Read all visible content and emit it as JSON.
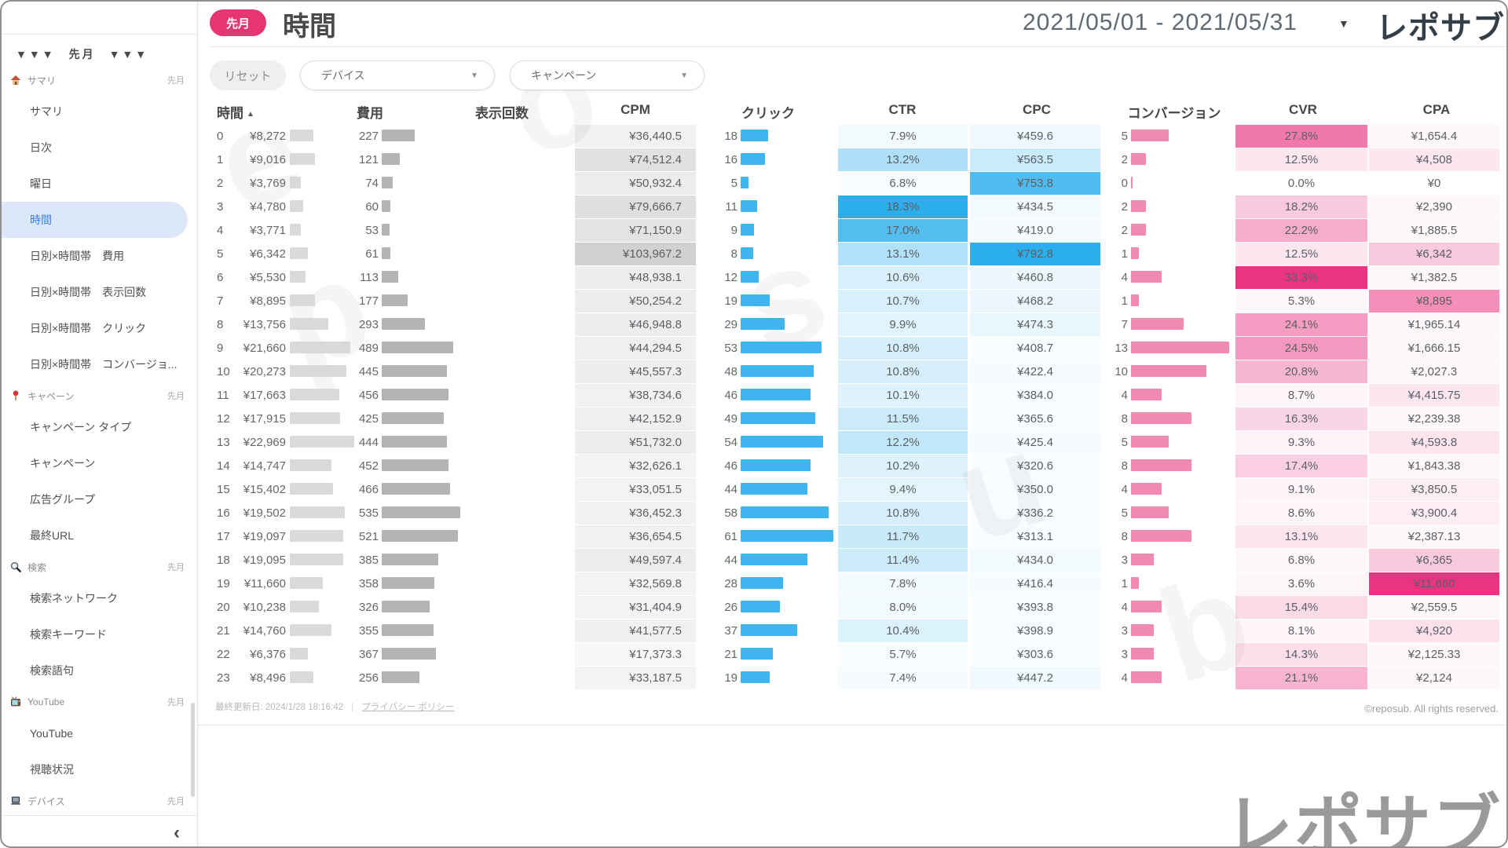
{
  "sidebar": {
    "top_label": "▼▼▼　先月　▼▼▼",
    "sections": [
      {
        "icon": "home-icon",
        "label": "サマリ",
        "period": "先月",
        "items": [
          {
            "label": "サマリ"
          },
          {
            "label": "日次"
          },
          {
            "label": "曜日"
          },
          {
            "label": "時間",
            "active": true
          },
          {
            "label": "日別×時間帯　費用"
          },
          {
            "label": "日別×時間帯　表示回数"
          },
          {
            "label": "日別×時間帯　クリック"
          },
          {
            "label": "日別×時間帯　コンバージョ..."
          }
        ]
      },
      {
        "icon": "pin-icon",
        "label": "キャペーン",
        "period": "先月",
        "items": [
          {
            "label": "キャンペーン タイプ"
          },
          {
            "label": "キャンペーン"
          },
          {
            "label": "広告グループ"
          },
          {
            "label": "最終URL"
          }
        ]
      },
      {
        "icon": "search-icon",
        "label": "検索",
        "period": "先月",
        "items": [
          {
            "label": "検索ネットワーク"
          },
          {
            "label": "検索キーワード"
          },
          {
            "label": "検索語句"
          }
        ]
      },
      {
        "icon": "tv-icon",
        "label": "YouTube",
        "period": "先月",
        "items": [
          {
            "label": "YouTube"
          },
          {
            "label": "視聴状況"
          }
        ]
      },
      {
        "icon": "laptop-icon",
        "label": "デバイス",
        "period": "先月",
        "items": []
      }
    ],
    "collapse": "‹"
  },
  "header": {
    "badge": "先月",
    "title": "時間",
    "date_range": "2021/05/01 - 2021/05/31",
    "date_caret": "▼",
    "brand": "レポサブ"
  },
  "filters": {
    "reset": "リセット",
    "device": "デバイス",
    "campaign": "キャンペーン",
    "caret": "▼"
  },
  "footer": {
    "updated": "最終更新日: 2024/1/28 18:16:42",
    "separator": "|",
    "privacy_link": "プライバシー ポリシー",
    "copyright": "©reposub. All rights reserved.",
    "watermark_brand": "レポサブ"
  },
  "colors": {
    "accent_pink": "#e73572",
    "heat_pink": [
      233,
      53,
      129
    ],
    "heat_blue": [
      44,
      174,
      236
    ],
    "bar_blue": "#3eb5ef",
    "bar_pink": "#f08ab3",
    "bar_gray_light": "#d9d9d9",
    "bar_gray": "#b3b3b3",
    "active_blue": "#3e7edc"
  },
  "chart_data": {
    "type": "table",
    "title": "時間",
    "period": "2021/05/01 - 2021/05/31",
    "columns": [
      "時間",
      "費用",
      "表示回数",
      "CPM",
      "クリック",
      "CTR",
      "CPC",
      "コンバージョン",
      "CVR",
      "CPA"
    ],
    "sort": {
      "column": "時間",
      "direction": "asc",
      "icon": "▲"
    },
    "scales": {
      "cost_max": 22969,
      "imp_max": 535,
      "click_max": 61,
      "conv_max": 13,
      "cpm_max": 103967.2,
      "ctr_range": [
        4,
        18.3
      ],
      "cpc_range": [
        300,
        792.8
      ],
      "cvr_max": 33.3,
      "cpa_max": 11660
    },
    "rows": [
      {
        "h": "0",
        "cost": 8272,
        "cost_f": "¥8,272",
        "imp": 227,
        "cpm": 36440.5,
        "cpm_f": "¥36,440.5",
        "clk": 18,
        "ctr": 7.9,
        "ctr_f": "7.9%",
        "cpc": 459.6,
        "cpc_f": "¥459.6",
        "cv": 5,
        "cvr": 27.8,
        "cvr_f": "27.8%",
        "cpa": 1654.4,
        "cpa_f": "¥1,654.4"
      },
      {
        "h": "1",
        "cost": 9016,
        "cost_f": "¥9,016",
        "imp": 121,
        "cpm": 74512.4,
        "cpm_f": "¥74,512.4",
        "clk": 16,
        "ctr": 13.2,
        "ctr_f": "13.2%",
        "cpc": 563.5,
        "cpc_f": "¥563.5",
        "cv": 2,
        "cvr": 12.5,
        "cvr_f": "12.5%",
        "cpa": 4508,
        "cpa_f": "¥4,508"
      },
      {
        "h": "2",
        "cost": 3769,
        "cost_f": "¥3,769",
        "imp": 74,
        "cpm": 50932.4,
        "cpm_f": "¥50,932.4",
        "clk": 5,
        "ctr": 6.8,
        "ctr_f": "6.8%",
        "cpc": 753.8,
        "cpc_f": "¥753.8",
        "cv": 0,
        "cvr": 0,
        "cvr_f": "0.0%",
        "cpa": 0,
        "cpa_f": "¥0"
      },
      {
        "h": "3",
        "cost": 4780,
        "cost_f": "¥4,780",
        "imp": 60,
        "cpm": 79666.7,
        "cpm_f": "¥79,666.7",
        "clk": 11,
        "ctr": 18.3,
        "ctr_f": "18.3%",
        "cpc": 434.5,
        "cpc_f": "¥434.5",
        "cv": 2,
        "cvr": 18.2,
        "cvr_f": "18.2%",
        "cpa": 2390,
        "cpa_f": "¥2,390"
      },
      {
        "h": "4",
        "cost": 3771,
        "cost_f": "¥3,771",
        "imp": 53,
        "cpm": 71150.9,
        "cpm_f": "¥71,150.9",
        "clk": 9,
        "ctr": 17.0,
        "ctr_f": "17.0%",
        "cpc": 419.0,
        "cpc_f": "¥419.0",
        "cv": 2,
        "cvr": 22.2,
        "cvr_f": "22.2%",
        "cpa": 1885.5,
        "cpa_f": "¥1,885.5"
      },
      {
        "h": "5",
        "cost": 6342,
        "cost_f": "¥6,342",
        "imp": 61,
        "cpm": 103967.2,
        "cpm_f": "¥103,967.2",
        "clk": 8,
        "ctr": 13.1,
        "ctr_f": "13.1%",
        "cpc": 792.8,
        "cpc_f": "¥792.8",
        "cv": 1,
        "cvr": 12.5,
        "cvr_f": "12.5%",
        "cpa": 6342,
        "cpa_f": "¥6,342"
      },
      {
        "h": "6",
        "cost": 5530,
        "cost_f": "¥5,530",
        "imp": 113,
        "cpm": 48938.1,
        "cpm_f": "¥48,938.1",
        "clk": 12,
        "ctr": 10.6,
        "ctr_f": "10.6%",
        "cpc": 460.8,
        "cpc_f": "¥460.8",
        "cv": 4,
        "cvr": 33.3,
        "cvr_f": "33.3%",
        "cpa": 1382.5,
        "cpa_f": "¥1,382.5"
      },
      {
        "h": "7",
        "cost": 8895,
        "cost_f": "¥8,895",
        "imp": 177,
        "cpm": 50254.2,
        "cpm_f": "¥50,254.2",
        "clk": 19,
        "ctr": 10.7,
        "ctr_f": "10.7%",
        "cpc": 468.2,
        "cpc_f": "¥468.2",
        "cv": 1,
        "cvr": 5.3,
        "cvr_f": "5.3%",
        "cpa": 8895,
        "cpa_f": "¥8,895"
      },
      {
        "h": "8",
        "cost": 13756,
        "cost_f": "¥13,756",
        "imp": 293,
        "cpm": 46948.8,
        "cpm_f": "¥46,948.8",
        "clk": 29,
        "ctr": 9.9,
        "ctr_f": "9.9%",
        "cpc": 474.3,
        "cpc_f": "¥474.3",
        "cv": 7,
        "cvr": 24.1,
        "cvr_f": "24.1%",
        "cpa": 1965.14,
        "cpa_f": "¥1,965.14"
      },
      {
        "h": "9",
        "cost": 21660,
        "cost_f": "¥21,660",
        "imp": 489,
        "cpm": 44294.5,
        "cpm_f": "¥44,294.5",
        "clk": 53,
        "ctr": 10.8,
        "ctr_f": "10.8%",
        "cpc": 408.7,
        "cpc_f": "¥408.7",
        "cv": 13,
        "cvr": 24.5,
        "cvr_f": "24.5%",
        "cpa": 1666.15,
        "cpa_f": "¥1,666.15"
      },
      {
        "h": "10",
        "cost": 20273,
        "cost_f": "¥20,273",
        "imp": 445,
        "cpm": 45557.3,
        "cpm_f": "¥45,557.3",
        "clk": 48,
        "ctr": 10.8,
        "ctr_f": "10.8%",
        "cpc": 422.4,
        "cpc_f": "¥422.4",
        "cv": 10,
        "cvr": 20.8,
        "cvr_f": "20.8%",
        "cpa": 2027.3,
        "cpa_f": "¥2,027.3"
      },
      {
        "h": "11",
        "cost": 17663,
        "cost_f": "¥17,663",
        "imp": 456,
        "cpm": 38734.6,
        "cpm_f": "¥38,734.6",
        "clk": 46,
        "ctr": 10.1,
        "ctr_f": "10.1%",
        "cpc": 384.0,
        "cpc_f": "¥384.0",
        "cv": 4,
        "cvr": 8.7,
        "cvr_f": "8.7%",
        "cpa": 4415.75,
        "cpa_f": "¥4,415.75"
      },
      {
        "h": "12",
        "cost": 17915,
        "cost_f": "¥17,915",
        "imp": 425,
        "cpm": 42152.9,
        "cpm_f": "¥42,152.9",
        "clk": 49,
        "ctr": 11.5,
        "ctr_f": "11.5%",
        "cpc": 365.6,
        "cpc_f": "¥365.6",
        "cv": 8,
        "cvr": 16.3,
        "cvr_f": "16.3%",
        "cpa": 2239.38,
        "cpa_f": "¥2,239.38"
      },
      {
        "h": "13",
        "cost": 22969,
        "cost_f": "¥22,969",
        "imp": 444,
        "cpm": 51732.0,
        "cpm_f": "¥51,732.0",
        "clk": 54,
        "ctr": 12.2,
        "ctr_f": "12.2%",
        "cpc": 425.4,
        "cpc_f": "¥425.4",
        "cv": 5,
        "cvr": 9.3,
        "cvr_f": "9.3%",
        "cpa": 4593.8,
        "cpa_f": "¥4,593.8"
      },
      {
        "h": "14",
        "cost": 14747,
        "cost_f": "¥14,747",
        "imp": 452,
        "cpm": 32626.1,
        "cpm_f": "¥32,626.1",
        "clk": 46,
        "ctr": 10.2,
        "ctr_f": "10.2%",
        "cpc": 320.6,
        "cpc_f": "¥320.6",
        "cv": 8,
        "cvr": 17.4,
        "cvr_f": "17.4%",
        "cpa": 1843.38,
        "cpa_f": "¥1,843.38"
      },
      {
        "h": "15",
        "cost": 15402,
        "cost_f": "¥15,402",
        "imp": 466,
        "cpm": 33051.5,
        "cpm_f": "¥33,051.5",
        "clk": 44,
        "ctr": 9.4,
        "ctr_f": "9.4%",
        "cpc": 350.0,
        "cpc_f": "¥350.0",
        "cv": 4,
        "cvr": 9.1,
        "cvr_f": "9.1%",
        "cpa": 3850.5,
        "cpa_f": "¥3,850.5"
      },
      {
        "h": "16",
        "cost": 19502,
        "cost_f": "¥19,502",
        "imp": 535,
        "cpm": 36452.3,
        "cpm_f": "¥36,452.3",
        "clk": 58,
        "ctr": 10.8,
        "ctr_f": "10.8%",
        "cpc": 336.2,
        "cpc_f": "¥336.2",
        "cv": 5,
        "cvr": 8.6,
        "cvr_f": "8.6%",
        "cpa": 3900.4,
        "cpa_f": "¥3,900.4"
      },
      {
        "h": "17",
        "cost": 19097,
        "cost_f": "¥19,097",
        "imp": 521,
        "cpm": 36654.5,
        "cpm_f": "¥36,654.5",
        "clk": 61,
        "ctr": 11.7,
        "ctr_f": "11.7%",
        "cpc": 313.1,
        "cpc_f": "¥313.1",
        "cv": 8,
        "cvr": 13.1,
        "cvr_f": "13.1%",
        "cpa": 2387.13,
        "cpa_f": "¥2,387.13"
      },
      {
        "h": "18",
        "cost": 19095,
        "cost_f": "¥19,095",
        "imp": 385,
        "cpm": 49597.4,
        "cpm_f": "¥49,597.4",
        "clk": 44,
        "ctr": 11.4,
        "ctr_f": "11.4%",
        "cpc": 434.0,
        "cpc_f": "¥434.0",
        "cv": 3,
        "cvr": 6.8,
        "cvr_f": "6.8%",
        "cpa": 6365,
        "cpa_f": "¥6,365"
      },
      {
        "h": "19",
        "cost": 11660,
        "cost_f": "¥11,660",
        "imp": 358,
        "cpm": 32569.8,
        "cpm_f": "¥32,569.8",
        "clk": 28,
        "ctr": 7.8,
        "ctr_f": "7.8%",
        "cpc": 416.4,
        "cpc_f": "¥416.4",
        "cv": 1,
        "cvr": 3.6,
        "cvr_f": "3.6%",
        "cpa": 11660,
        "cpa_f": "¥11,660"
      },
      {
        "h": "20",
        "cost": 10238,
        "cost_f": "¥10,238",
        "imp": 326,
        "cpm": 31404.9,
        "cpm_f": "¥31,404.9",
        "clk": 26,
        "ctr": 8.0,
        "ctr_f": "8.0%",
        "cpc": 393.8,
        "cpc_f": "¥393.8",
        "cv": 4,
        "cvr": 15.4,
        "cvr_f": "15.4%",
        "cpa": 2559.5,
        "cpa_f": "¥2,559.5"
      },
      {
        "h": "21",
        "cost": 14760,
        "cost_f": "¥14,760",
        "imp": 355,
        "cpm": 41577.5,
        "cpm_f": "¥41,577.5",
        "clk": 37,
        "ctr": 10.4,
        "ctr_f": "10.4%",
        "cpc": 398.9,
        "cpc_f": "¥398.9",
        "cv": 3,
        "cvr": 8.1,
        "cvr_f": "8.1%",
        "cpa": 4920,
        "cpa_f": "¥4,920"
      },
      {
        "h": "22",
        "cost": 6376,
        "cost_f": "¥6,376",
        "imp": 367,
        "cpm": 17373.3,
        "cpm_f": "¥17,373.3",
        "clk": 21,
        "ctr": 5.7,
        "ctr_f": "5.7%",
        "cpc": 303.6,
        "cpc_f": "¥303.6",
        "cv": 3,
        "cvr": 14.3,
        "cvr_f": "14.3%",
        "cpa": 2125.33,
        "cpa_f": "¥2,125.33"
      },
      {
        "h": "23",
        "cost": 8496,
        "cost_f": "¥8,496",
        "imp": 256,
        "cpm": 33187.5,
        "cpm_f": "¥33,187.5",
        "clk": 19,
        "ctr": 7.4,
        "ctr_f": "7.4%",
        "cpc": 447.2,
        "cpc_f": "¥447.2",
        "cv": 4,
        "cvr": 21.1,
        "cvr_f": "21.1%",
        "cpa": 2124,
        "cpa_f": "¥2,124"
      }
    ]
  }
}
